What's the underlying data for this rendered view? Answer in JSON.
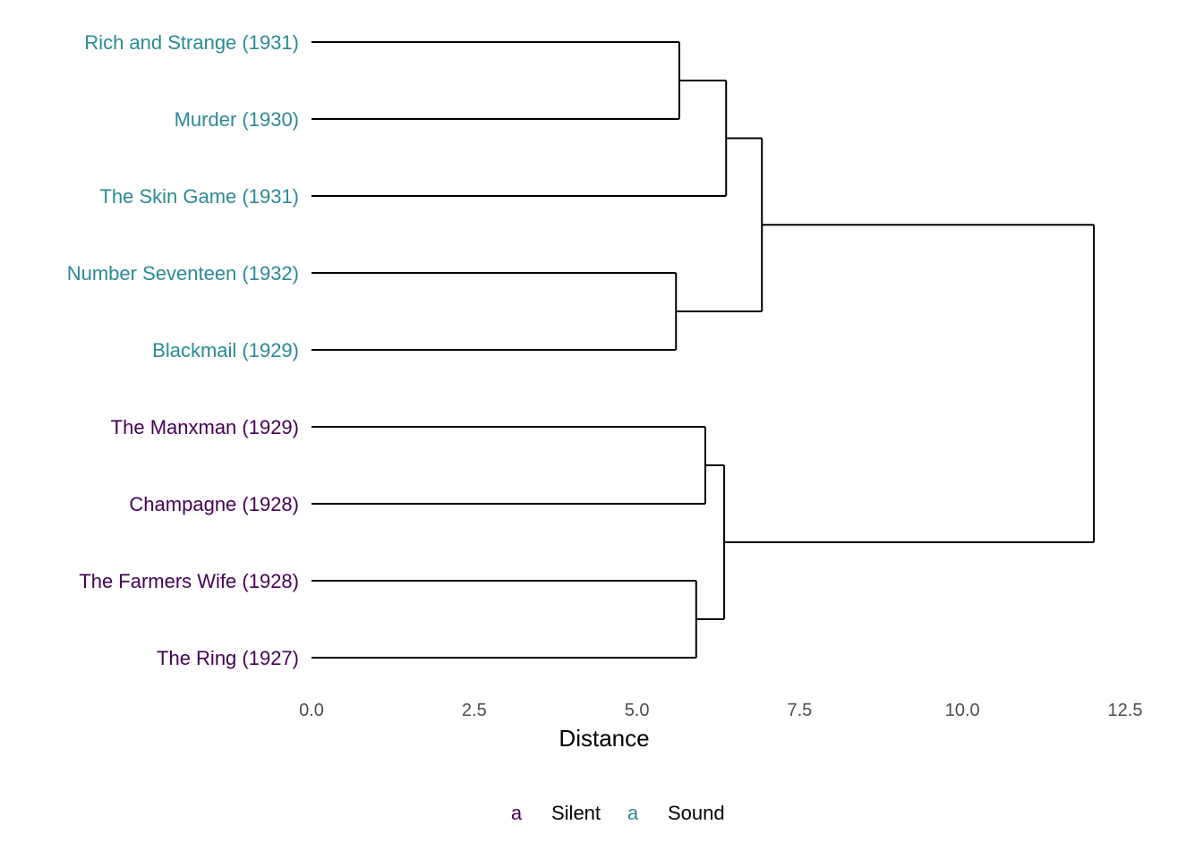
{
  "chart_data": {
    "type": "dendrogram",
    "orientation": "horizontal",
    "xlabel": "Distance",
    "xlim": [
      0,
      12.5
    ],
    "xticks": [
      0,
      2.5,
      5,
      7.5,
      10,
      12.5
    ],
    "xtick_labels": [
      "0.0",
      "2.5",
      "5.0",
      "7.5",
      "10.0",
      "12.5"
    ],
    "grid": false,
    "legend_position": "bottom",
    "groups": [
      {
        "name": "Silent",
        "key": "a",
        "color": "#440154"
      },
      {
        "name": "Sound",
        "key": "a",
        "color": "#2a8a94"
      }
    ],
    "leaves": [
      {
        "label": "Rich and Strange (1931)",
        "group": "Sound"
      },
      {
        "label": "Murder (1930)",
        "group": "Sound"
      },
      {
        "label": "The Skin Game (1931)",
        "group": "Sound"
      },
      {
        "label": "Number Seventeen (1932)",
        "group": "Sound"
      },
      {
        "label": "Blackmail (1929)",
        "group": "Sound"
      },
      {
        "label": "The Manxman (1929)",
        "group": "Silent"
      },
      {
        "label": "Champagne (1928)",
        "group": "Silent"
      },
      {
        "label": "The Farmers Wife (1928)",
        "group": "Silent"
      },
      {
        "label": "The Ring (1927)",
        "group": "Silent"
      }
    ],
    "merges": [
      {
        "id": "m1",
        "children": [
          "Rich and Strange (1931)",
          "Murder (1930)"
        ],
        "height": 5.65
      },
      {
        "id": "m2",
        "children": [
          "m1",
          "The Skin Game (1931)"
        ],
        "height": 6.37
      },
      {
        "id": "m3",
        "children": [
          "Number Seventeen (1932)",
          "Blackmail (1929)"
        ],
        "height": 5.6
      },
      {
        "id": "m4",
        "children": [
          "m2",
          "m3"
        ],
        "height": 6.92
      },
      {
        "id": "m5",
        "children": [
          "The Manxman (1929)",
          "Champagne (1928)"
        ],
        "height": 6.05
      },
      {
        "id": "m6",
        "children": [
          "The Farmers Wife (1928)",
          "The Ring (1927)"
        ],
        "height": 5.91
      },
      {
        "id": "m7",
        "children": [
          "m5",
          "m6"
        ],
        "height": 6.34
      },
      {
        "id": "m8",
        "children": [
          "m4",
          "m7"
        ],
        "height": 12.02
      }
    ]
  }
}
